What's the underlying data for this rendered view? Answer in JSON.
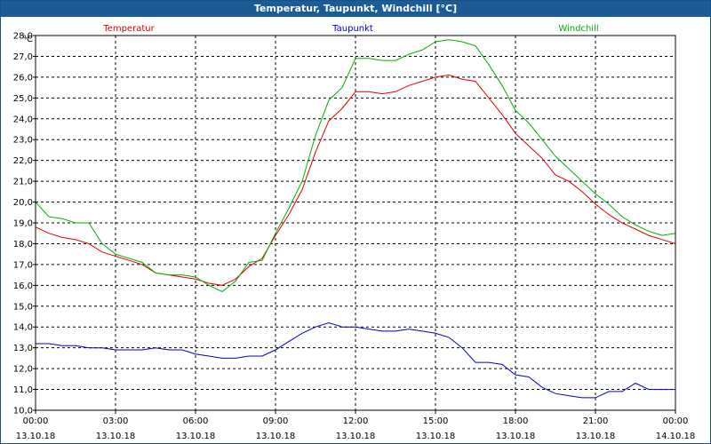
{
  "window": {
    "title": "Temperatur, Taupunkt, Windchill [°C]"
  },
  "chart_data": {
    "type": "line",
    "title": "Temperatur, Taupunkt, Windchill [°C]",
    "ylabel": "°C",
    "ylim": [
      10.0,
      28.0
    ],
    "yticks": [
      "10,0",
      "11,0",
      "12,0",
      "13,0",
      "14,0",
      "15,0",
      "16,0",
      "17,0",
      "18,0",
      "19,0",
      "20,0",
      "21,0",
      "22,0",
      "23,0",
      "24,0",
      "25,0",
      "26,0",
      "27,0",
      "28,0"
    ],
    "xlim": [
      0,
      24
    ],
    "xticks": [
      {
        "time": "00:00",
        "date": "13.10.18"
      },
      {
        "time": "03:00",
        "date": "13.10.18"
      },
      {
        "time": "06:00",
        "date": "13.10.18"
      },
      {
        "time": "09:00",
        "date": "13.10.18"
      },
      {
        "time": "12:00",
        "date": "13.10.18"
      },
      {
        "time": "15:00",
        "date": "13.10.18"
      },
      {
        "time": "18:00",
        "date": "13.10.18"
      },
      {
        "time": "21:00",
        "date": "13.10.18"
      },
      {
        "time": "00:00",
        "date": "14.10.18"
      }
    ],
    "grid": true,
    "legend_position": "top",
    "series": [
      {
        "name": "Temperatur",
        "color": "#e00000",
        "x": [
          0,
          0.5,
          1,
          1.5,
          2,
          2.5,
          3,
          3.5,
          4,
          4.5,
          5,
          5.5,
          6,
          6.5,
          7,
          7.5,
          8,
          8.5,
          9,
          9.5,
          10,
          10.5,
          11,
          11.5,
          12,
          12.5,
          13,
          13.5,
          14,
          14.5,
          15,
          15.5,
          16,
          16.5,
          17,
          17.5,
          18,
          18.5,
          19,
          19.5,
          20,
          20.5,
          21,
          21.5,
          22,
          22.5,
          23,
          23.5,
          24
        ],
        "values": [
          18.8,
          18.5,
          18.3,
          18.2,
          18.0,
          17.6,
          17.4,
          17.2,
          17.0,
          16.6,
          16.5,
          16.4,
          16.3,
          16.1,
          16.0,
          16.3,
          16.9,
          17.3,
          18.4,
          19.4,
          20.6,
          22.4,
          23.9,
          24.5,
          25.3,
          25.3,
          25.2,
          25.3,
          25.6,
          25.8,
          26.0,
          26.1,
          25.9,
          25.8,
          25.0,
          24.2,
          23.3,
          22.7,
          22.1,
          21.3,
          21.0,
          20.5,
          19.9,
          19.4,
          19.0,
          18.7,
          18.4,
          18.2,
          18.0
        ]
      },
      {
        "name": "Taupunkt",
        "color": "#0000c0",
        "x": [
          0,
          0.5,
          1,
          1.5,
          2,
          2.5,
          3,
          3.5,
          4,
          4.5,
          5,
          5.5,
          6,
          6.5,
          7,
          7.5,
          8,
          8.5,
          9,
          9.5,
          10,
          10.5,
          11,
          11.5,
          12,
          12.5,
          13,
          13.5,
          14,
          14.5,
          15,
          15.5,
          16,
          16.5,
          17,
          17.5,
          18,
          18.5,
          19,
          19.5,
          20,
          20.5,
          21,
          21.5,
          22,
          22.5,
          23,
          23.5,
          24
        ],
        "values": [
          13.2,
          13.2,
          13.1,
          13.1,
          13.0,
          13.0,
          12.9,
          12.9,
          12.9,
          13.0,
          12.9,
          12.9,
          12.7,
          12.6,
          12.5,
          12.5,
          12.6,
          12.6,
          12.9,
          13.3,
          13.7,
          14.0,
          14.2,
          14.0,
          14.0,
          13.9,
          13.8,
          13.8,
          13.9,
          13.8,
          13.7,
          13.5,
          13.0,
          12.3,
          12.3,
          12.2,
          11.7,
          11.6,
          11.1,
          10.8,
          10.7,
          10.6,
          10.6,
          10.9,
          10.9,
          11.3,
          11.0,
          11.0,
          11.0
        ]
      },
      {
        "name": "Windchill",
        "color": "#00b000",
        "x": [
          0,
          0.5,
          1,
          1.5,
          2,
          2.5,
          3,
          3.5,
          4,
          4.5,
          5,
          5.5,
          6,
          6.5,
          7,
          7.5,
          8,
          8.5,
          9,
          9.5,
          10,
          10.5,
          11,
          11.5,
          12,
          12.5,
          13,
          13.5,
          14,
          14.5,
          15,
          15.5,
          16,
          16.5,
          17,
          17.5,
          18,
          18.5,
          19,
          19.5,
          20,
          20.5,
          21,
          21.5,
          22,
          22.5,
          23,
          23.5,
          24
        ],
        "values": [
          20.0,
          19.3,
          19.2,
          19.0,
          19.0,
          18.0,
          17.5,
          17.3,
          17.1,
          16.6,
          16.5,
          16.5,
          16.4,
          16.0,
          15.7,
          16.2,
          17.1,
          17.2,
          18.5,
          19.7,
          21.0,
          23.2,
          24.9,
          25.5,
          26.9,
          26.9,
          26.8,
          26.8,
          27.1,
          27.3,
          27.7,
          27.8,
          27.7,
          27.5,
          26.6,
          25.6,
          24.4,
          23.8,
          23.0,
          22.2,
          21.6,
          21.0,
          20.4,
          19.9,
          19.3,
          18.9,
          18.6,
          18.4,
          18.5
        ]
      }
    ]
  }
}
